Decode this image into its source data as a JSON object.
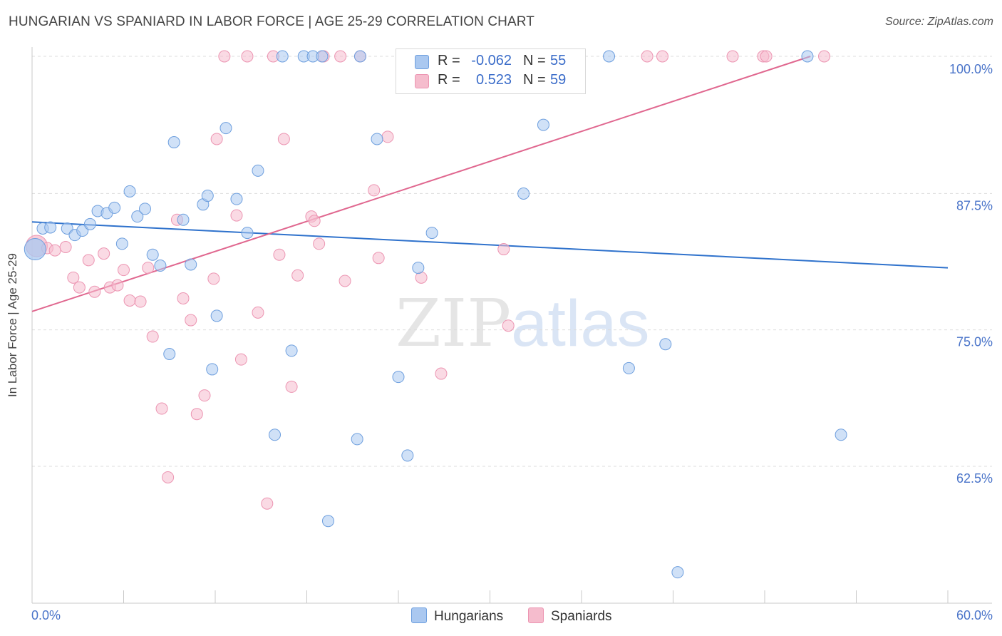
{
  "title": "HUNGARIAN VS SPANIARD IN LABOR FORCE | AGE 25-29 CORRELATION CHART",
  "source": "Source: ZipAtlas.com",
  "watermark": {
    "zip": "ZIP",
    "atlas": "atlas"
  },
  "legend": {
    "hungarians": {
      "r_label": "R =",
      "r_value": "-0.062",
      "n_label": "N =",
      "n_value": "55"
    },
    "spaniards": {
      "r_label": "R =",
      "r_value": "0.523",
      "n_label": "N =",
      "n_value": "59"
    }
  },
  "bottom_legend": {
    "hungarians": "Hungarians",
    "spaniards": "Spaniards"
  },
  "colors": {
    "hungarian_fill": "#aac8f0",
    "hungarian_stroke": "#6e9fde",
    "hungarian_line": "#2f72cc",
    "spaniard_fill": "#f5bccd",
    "spaniard_stroke": "#ec95b2",
    "spaniard_line": "#e0678f",
    "tick_text": "#4a74c9",
    "grid": "#dcdcdc"
  },
  "chart_data": {
    "type": "scatter",
    "title": "HUNGARIAN VS SPANIARD IN LABOR FORCE | AGE 25-29 CORRELATION CHART",
    "xlabel": "",
    "ylabel": "In Labor Force | Age 25-29",
    "xlim": [
      0,
      60
    ],
    "ylim": [
      50,
      100
    ],
    "x_tick_labels": [
      "0.0%",
      "60.0%"
    ],
    "y_ticks": [
      62.5,
      75.0,
      87.5,
      100.0
    ],
    "y_tick_labels": [
      "62.5%",
      "75.0%",
      "87.5%",
      "100.0%"
    ],
    "grid": "horizontal dashed",
    "legend_position": "top-center",
    "series": [
      {
        "name": "Hungarians",
        "trend": {
          "x": [
            0,
            60
          ],
          "y": [
            86.0,
            81.8
          ]
        },
        "points": [
          {
            "x": 0.2,
            "y": 83.5,
            "big": true
          },
          {
            "x": 0.7,
            "y": 85.4
          },
          {
            "x": 1.2,
            "y": 85.5
          },
          {
            "x": 2.3,
            "y": 85.4
          },
          {
            "x": 2.8,
            "y": 84.8
          },
          {
            "x": 3.3,
            "y": 85.2
          },
          {
            "x": 3.8,
            "y": 85.8
          },
          {
            "x": 4.3,
            "y": 87.0
          },
          {
            "x": 4.9,
            "y": 86.8
          },
          {
            "x": 5.4,
            "y": 87.3
          },
          {
            "x": 5.9,
            "y": 84.0
          },
          {
            "x": 6.4,
            "y": 88.8
          },
          {
            "x": 6.9,
            "y": 86.5
          },
          {
            "x": 7.4,
            "y": 87.2
          },
          {
            "x": 7.9,
            "y": 83.0
          },
          {
            "x": 8.4,
            "y": 82.0
          },
          {
            "x": 9.0,
            "y": 73.9
          },
          {
            "x": 9.3,
            "y": 93.3
          },
          {
            "x": 9.9,
            "y": 86.2
          },
          {
            "x": 10.4,
            "y": 82.1
          },
          {
            "x": 11.2,
            "y": 87.6
          },
          {
            "x": 11.5,
            "y": 88.4
          },
          {
            "x": 11.8,
            "y": 72.5
          },
          {
            "x": 12.1,
            "y": 77.4
          },
          {
            "x": 12.7,
            "y": 94.6
          },
          {
            "x": 13.4,
            "y": 88.1
          },
          {
            "x": 14.1,
            "y": 85.0
          },
          {
            "x": 14.8,
            "y": 90.7
          },
          {
            "x": 15.9,
            "y": 66.5
          },
          {
            "x": 16.4,
            "y": 100.0
          },
          {
            "x": 17.0,
            "y": 74.2
          },
          {
            "x": 17.8,
            "y": 100.0
          },
          {
            "x": 18.4,
            "y": 100.0
          },
          {
            "x": 19.0,
            "y": 100.0
          },
          {
            "x": 19.4,
            "y": 58.6
          },
          {
            "x": 21.3,
            "y": 66.1
          },
          {
            "x": 21.5,
            "y": 100.0
          },
          {
            "x": 22.6,
            "y": 93.6
          },
          {
            "x": 24.0,
            "y": 71.8
          },
          {
            "x": 24.6,
            "y": 64.6
          },
          {
            "x": 25.3,
            "y": 81.8
          },
          {
            "x": 26.2,
            "y": 85.0
          },
          {
            "x": 28.6,
            "y": 100.0
          },
          {
            "x": 32.2,
            "y": 88.6
          },
          {
            "x": 33.5,
            "y": 94.9
          },
          {
            "x": 37.8,
            "y": 100.0
          },
          {
            "x": 39.1,
            "y": 72.6
          },
          {
            "x": 41.5,
            "y": 74.8
          },
          {
            "x": 42.3,
            "y": 53.9
          },
          {
            "x": 50.8,
            "y": 100.0
          },
          {
            "x": 53.0,
            "y": 66.5
          }
        ]
      },
      {
        "name": "Spaniards",
        "trend": {
          "x": [
            0,
            51
          ],
          "y": [
            77.8,
            100.0
          ]
        },
        "points": [
          {
            "x": 0.3,
            "y": 83.8,
            "big": true
          },
          {
            "x": 1.0,
            "y": 83.6
          },
          {
            "x": 1.5,
            "y": 83.4
          },
          {
            "x": 2.2,
            "y": 83.7
          },
          {
            "x": 2.7,
            "y": 80.9
          },
          {
            "x": 3.1,
            "y": 80.0
          },
          {
            "x": 3.7,
            "y": 82.5
          },
          {
            "x": 4.1,
            "y": 79.6
          },
          {
            "x": 4.7,
            "y": 83.1
          },
          {
            "x": 5.1,
            "y": 80.0
          },
          {
            "x": 5.6,
            "y": 80.2
          },
          {
            "x": 6.0,
            "y": 81.6
          },
          {
            "x": 6.4,
            "y": 78.8
          },
          {
            "x": 7.1,
            "y": 78.7
          },
          {
            "x": 7.6,
            "y": 81.8
          },
          {
            "x": 7.9,
            "y": 75.5
          },
          {
            "x": 8.5,
            "y": 68.9
          },
          {
            "x": 8.9,
            "y": 62.6
          },
          {
            "x": 9.5,
            "y": 86.2
          },
          {
            "x": 9.9,
            "y": 79.0
          },
          {
            "x": 10.4,
            "y": 77.0
          },
          {
            "x": 10.8,
            "y": 68.4
          },
          {
            "x": 11.3,
            "y": 70.1
          },
          {
            "x": 11.9,
            "y": 80.8
          },
          {
            "x": 12.1,
            "y": 93.6
          },
          {
            "x": 12.6,
            "y": 100.0
          },
          {
            "x": 13.4,
            "y": 86.6
          },
          {
            "x": 13.7,
            "y": 73.4
          },
          {
            "x": 14.1,
            "y": 100.0
          },
          {
            "x": 14.8,
            "y": 77.7
          },
          {
            "x": 15.4,
            "y": 60.2
          },
          {
            "x": 15.8,
            "y": 100.0
          },
          {
            "x": 16.2,
            "y": 83.0
          },
          {
            "x": 16.5,
            "y": 93.6
          },
          {
            "x": 17.0,
            "y": 70.9
          },
          {
            "x": 17.4,
            "y": 81.1
          },
          {
            "x": 18.3,
            "y": 86.5
          },
          {
            "x": 18.5,
            "y": 86.1
          },
          {
            "x": 18.8,
            "y": 84.0
          },
          {
            "x": 19.1,
            "y": 100.0
          },
          {
            "x": 20.2,
            "y": 100.0
          },
          {
            "x": 20.5,
            "y": 80.6
          },
          {
            "x": 21.5,
            "y": 100.0
          },
          {
            "x": 22.4,
            "y": 88.9
          },
          {
            "x": 22.7,
            "y": 82.7
          },
          {
            "x": 23.3,
            "y": 93.8
          },
          {
            "x": 24.8,
            "y": 100.0
          },
          {
            "x": 25.5,
            "y": 80.9
          },
          {
            "x": 26.8,
            "y": 72.1
          },
          {
            "x": 30.0,
            "y": 100.0
          },
          {
            "x": 30.9,
            "y": 83.5
          },
          {
            "x": 31.2,
            "y": 76.5
          },
          {
            "x": 40.3,
            "y": 100.0
          },
          {
            "x": 41.3,
            "y": 100.0
          },
          {
            "x": 45.9,
            "y": 100.0
          },
          {
            "x": 47.9,
            "y": 100.0
          },
          {
            "x": 48.1,
            "y": 100.0
          },
          {
            "x": 51.9,
            "y": 100.0
          }
        ]
      }
    ]
  }
}
